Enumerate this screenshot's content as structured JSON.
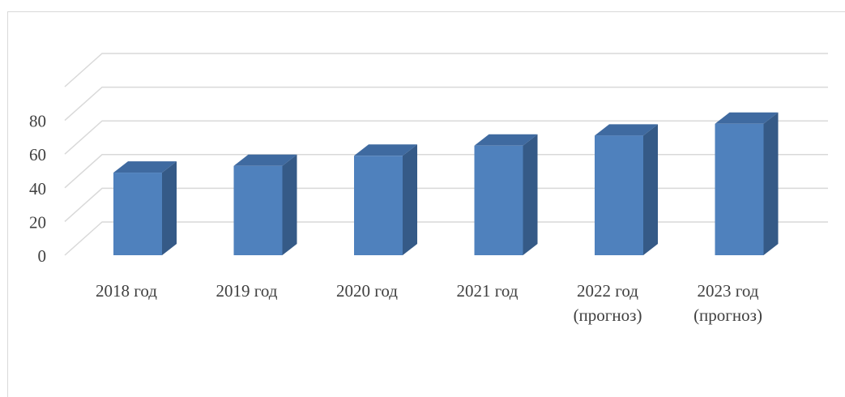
{
  "chart_data": {
    "type": "bar",
    "style": "3d-column",
    "categories": [
      [
        "2018 год"
      ],
      [
        "2019 год"
      ],
      [
        "2020 год"
      ],
      [
        "2021 год"
      ],
      [
        "2022 год",
        "(прогноз)"
      ],
      [
        "2023 год",
        "(прогноз)"
      ]
    ],
    "values": [
      49,
      53,
      59,
      65,
      71,
      78
    ],
    "yticks": [
      "0",
      "20",
      "40",
      "60",
      "80"
    ],
    "ylim": [
      0,
      100
    ],
    "grid": true,
    "legend": "none",
    "colors": {
      "front": "#4f81bd",
      "side": "#355a87",
      "top": "#3f6aa0",
      "grid": "#d9d9d9"
    }
  }
}
